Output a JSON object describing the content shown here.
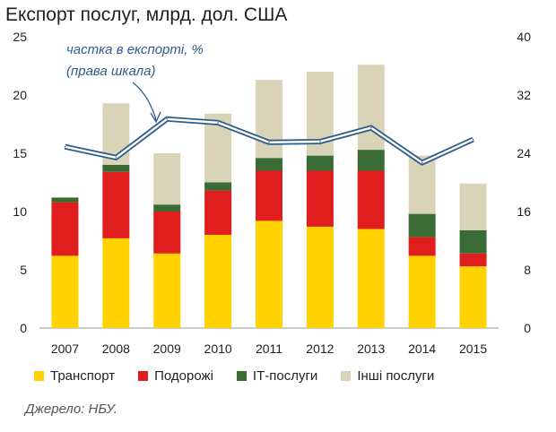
{
  "title": "Експорт послуг, млрд. дол. США",
  "source": "Джерело: НБУ.",
  "chart_data": {
    "type": "bar",
    "stacked": true,
    "categories": [
      "2007",
      "2008",
      "2009",
      "2010",
      "2011",
      "2012",
      "2013",
      "2014",
      "2015"
    ],
    "series": [
      {
        "name": "Транспорт",
        "color": "#ffd200",
        "values": [
          6.2,
          7.7,
          6.4,
          8.0,
          9.2,
          8.7,
          8.5,
          6.2,
          5.3
        ]
      },
      {
        "name": "Подорожі",
        "color": "#e01e1e",
        "values": [
          4.6,
          5.7,
          3.6,
          3.8,
          4.3,
          4.8,
          5.0,
          1.6,
          1.1
        ]
      },
      {
        "name": "ІТ-послуги",
        "color": "#3a6b35",
        "values": [
          0.4,
          0.6,
          0.6,
          0.7,
          1.1,
          1.3,
          1.8,
          2.0,
          2.0
        ]
      },
      {
        "name": "Інші послуги",
        "color": "#d9d4b8",
        "values": [
          0.0,
          5.3,
          4.4,
          5.9,
          6.7,
          7.2,
          7.3,
          5.0,
          4.0
        ]
      }
    ],
    "line": {
      "name": "частка в експорті, %",
      "annotation_lines": [
        "частка в експорті, %",
        "(права шкала)"
      ],
      "axis": "right",
      "color": "#2e5c8a",
      "values": [
        24.9,
        23.4,
        28.7,
        28.2,
        25.5,
        25.6,
        27.5,
        22.7,
        25.9
      ]
    },
    "left_axis": {
      "min": 0,
      "max": 25,
      "ticks": [
        0,
        5,
        10,
        15,
        20,
        25
      ]
    },
    "right_axis": {
      "min": 0,
      "max": 40,
      "ticks": [
        0,
        8,
        16,
        24,
        32,
        40
      ]
    },
    "legend_position": "bottom"
  }
}
